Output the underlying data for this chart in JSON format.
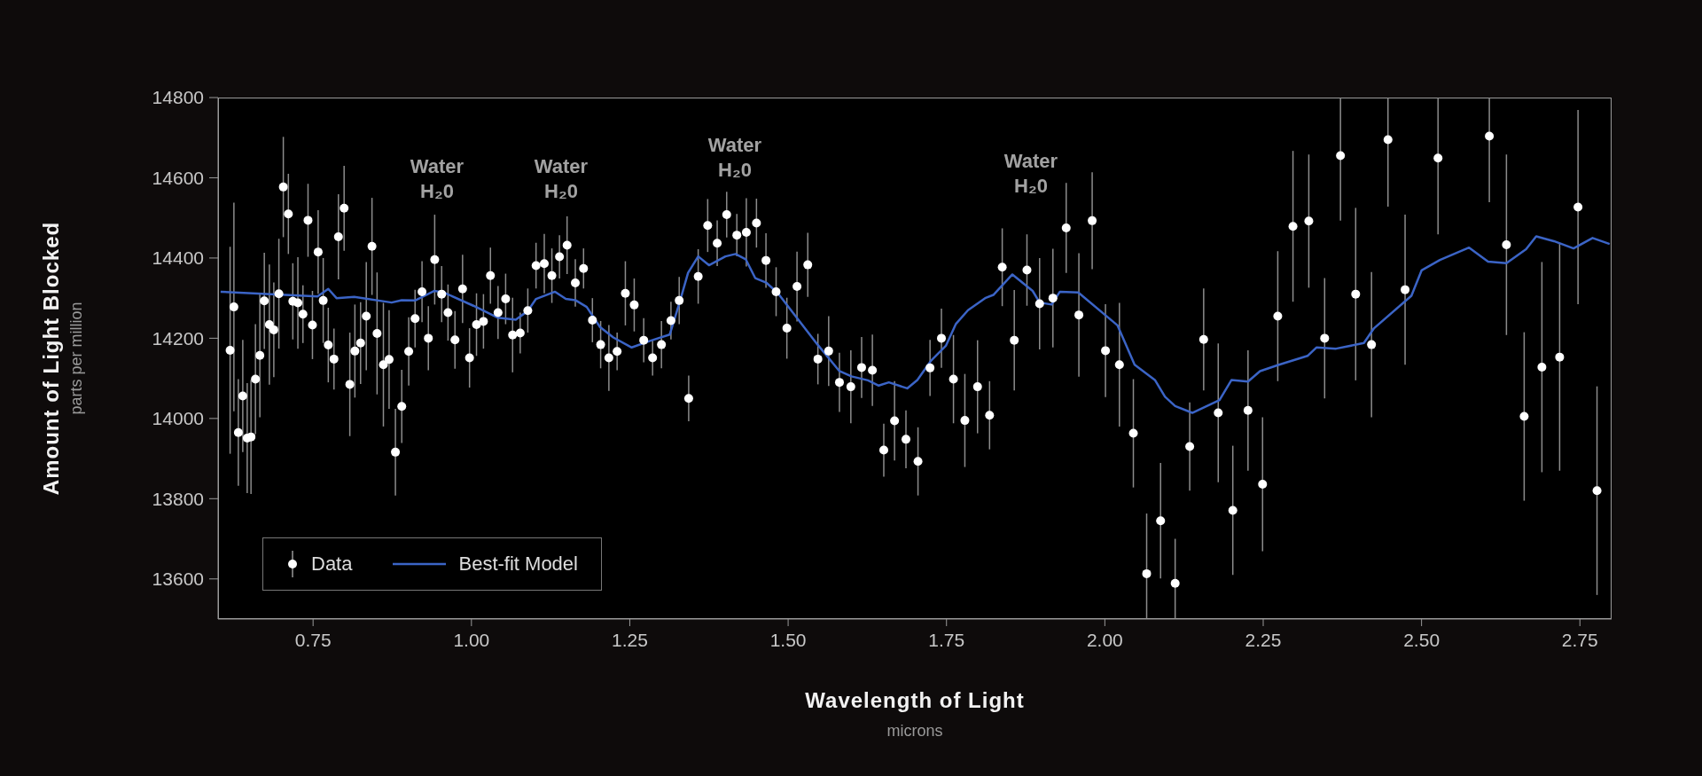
{
  "chart_data": {
    "type": "scatter",
    "xlabel": "Wavelength of Light\nmicrons",
    "ylabel": "Amount of Light Blocked\nparts per million",
    "xlim": [
      0.6,
      2.8
    ],
    "xticks": [
      0.75,
      {
        "value": 1,
        "label": "1.00"
      },
      1.25,
      {
        "value": 1.5,
        "label": "1.50"
      },
      1.75,
      {
        "value": 2,
        "label": "2.00"
      },
      2.25,
      {
        "value": 2.5,
        "label": "2.50"
      },
      2.75
    ],
    "ylim": [
      13500,
      14800
    ],
    "yticks": [
      13600,
      13800,
      14000,
      14200,
      14400,
      14600,
      14800
    ],
    "legend": "bottom left",
    "annotations": [
      "Water\nH₂0",
      "Water\nH₂0",
      "Water\nH₂0",
      "Water\nH₂0"
    ],
    "series": [
      {
        "name": "Data",
        "color": "#ffffff",
        "marker": "circle",
        "x": [
          0.619,
          0.625,
          0.632,
          0.639,
          0.646,
          0.652,
          0.659,
          0.666,
          0.673,
          0.681,
          0.688,
          0.696,
          0.703,
          0.711,
          0.718,
          0.726,
          0.734,
          0.742,
          0.749,
          0.758,
          0.766,
          0.774,
          0.783,
          0.79,
          0.799,
          0.808,
          0.816,
          0.825,
          0.834,
          0.843,
          0.851,
          0.861,
          0.87,
          0.88,
          0.89,
          0.901,
          0.911,
          0.922,
          0.932,
          0.942,
          0.953,
          0.963,
          0.974,
          0.986,
          0.997,
          1.008,
          1.019,
          1.03,
          1.042,
          1.054,
          1.065,
          1.077,
          1.089,
          1.102,
          1.115,
          1.127,
          1.139,
          1.151,
          1.164,
          1.177,
          1.191,
          1.204,
          1.217,
          1.23,
          1.243,
          1.257,
          1.272,
          1.286,
          1.3,
          1.315,
          1.328,
          1.343,
          1.358,
          1.373,
          1.388,
          1.403,
          1.419,
          1.434,
          1.45,
          1.465,
          1.481,
          1.498,
          1.514,
          1.531,
          1.547,
          1.564,
          1.581,
          1.599,
          1.616,
          1.633,
          1.651,
          1.668,
          1.686,
          1.705,
          1.724,
          1.742,
          1.761,
          1.779,
          1.799,
          1.818,
          1.838,
          1.857,
          1.877,
          1.897,
          1.918,
          1.939,
          1.959,
          1.98,
          2.001,
          2.023,
          2.045,
          2.066,
          2.088,
          2.111,
          2.134,
          2.156,
          2.179,
          2.202,
          2.226,
          2.249,
          2.273,
          2.297,
          2.322,
          2.347,
          2.372,
          2.396,
          2.421,
          2.447,
          2.474,
          2.526,
          2.607,
          2.634,
          2.662,
          2.69,
          2.718,
          2.747,
          2.777
        ],
        "values": [
          14170,
          14278,
          13965,
          14056,
          13951,
          13954,
          14098,
          14157,
          14293,
          14234,
          14221,
          14311,
          14577,
          14510,
          14292,
          14288,
          14260,
          14494,
          14233,
          14415,
          14294,
          14183,
          14148,
          14453,
          14524,
          14085,
          14168,
          14188,
          14255,
          14429,
          14212,
          14134,
          14147,
          13916,
          14030,
          14167,
          14249,
          14316,
          14200,
          14396,
          14310,
          14264,
          14196,
          14323,
          14151,
          14234,
          14242,
          14356,
          14264,
          14298,
          14208,
          14213,
          14269,
          14381,
          14386,
          14356,
          14403,
          14432,
          14338,
          14374,
          14245,
          14184,
          14151,
          14167,
          14312,
          14283,
          14195,
          14151,
          14184,
          14244,
          14294,
          14050,
          14354,
          14481,
          14437,
          14508,
          14457,
          14464,
          14487,
          14394,
          14316,
          14225,
          14329,
          14383,
          14148,
          14168,
          14090,
          14079,
          14127,
          14120,
          13921,
          13994,
          13948,
          13893,
          14126,
          14200,
          14098,
          13995,
          14079,
          14008,
          14377,
          14195,
          14370,
          14286,
          14300,
          14475,
          14258,
          14493,
          14169,
          14134,
          13963,
          13613,
          13745,
          13589,
          13930,
          14197,
          14014,
          13771,
          14020,
          13836,
          14255,
          14479,
          14492,
          14200,
          14655,
          14310,
          14184,
          14695,
          14321,
          14649,
          14704,
          14433,
          14005,
          14128,
          14153,
          14527,
          13820
        ],
        "errors": [
          258,
          260,
          133,
          140,
          137,
          142,
          137,
          154,
          120,
          150,
          118,
          137,
          125,
          100,
          95,
          114,
          72,
          91,
          85,
          104,
          106,
          93,
          76,
          106,
          106,
          129,
          116,
          102,
          135,
          121,
          152,
          154,
          123,
          108,
          91,
          85,
          72,
          76,
          80,
          112,
          70,
          70,
          72,
          85,
          74,
          78,
          68,
          70,
          66,
          63,
          93,
          51,
          55,
          57,
          74,
          68,
          54,
          72,
          59,
          50,
          55,
          59,
          82,
          47,
          80,
          66,
          55,
          44,
          59,
          47,
          59,
          57,
          68,
          66,
          57,
          57,
          53,
          85,
          61,
          68,
          61,
          76,
          87,
          80,
          63,
          87,
          74,
          91,
          76,
          89,
          66,
          99,
          72,
          85,
          70,
          74,
          110,
          116,
          116,
          85,
          97,
          125,
          89,
          114,
          123,
          112,
          154,
          121,
          116,
          154,
          135,
          [
            13500,
            13763
          ],
          144,
          [
            13500,
            13700
          ],
          110,
          127,
          173,
          161,
          150,
          167,
          162,
          188,
          166,
          150,
          [
            14493,
            14800
          ],
          215,
          181,
          [
            14528,
            14800
          ],
          187,
          [
            14459,
            14800
          ],
          [
            14539,
            14800
          ],
          225,
          210,
          262,
          283,
          242,
          260
        ]
      },
      {
        "name": "Best-fit Model",
        "type": "line",
        "color": "#3b64c6",
        "marker": "none",
        "x": [
          0.604,
          0.757,
          0.774,
          0.787,
          0.815,
          0.874,
          0.89,
          0.911,
          0.941,
          0.955,
          1.003,
          1.042,
          1.07,
          1.089,
          1.102,
          1.132,
          1.149,
          1.164,
          1.182,
          1.203,
          1.224,
          1.253,
          1.283,
          1.313,
          1.329,
          1.342,
          1.358,
          1.375,
          1.401,
          1.417,
          1.433,
          1.448,
          1.466,
          1.484,
          1.546,
          1.581,
          1.6,
          1.626,
          1.643,
          1.659,
          1.688,
          1.704,
          1.725,
          1.749,
          1.765,
          1.784,
          1.811,
          1.824,
          1.854,
          1.886,
          1.897,
          1.916,
          1.929,
          1.958,
          2.02,
          2.047,
          2.079,
          2.095,
          2.111,
          2.138,
          2.181,
          2.2,
          2.226,
          2.245,
          2.275,
          2.32,
          2.334,
          2.365,
          2.409,
          2.425,
          2.484,
          2.5,
          2.529,
          2.575,
          2.605,
          2.634,
          2.665,
          2.681,
          2.709,
          2.74,
          2.77,
          2.797
        ],
        "values": [
          14316,
          14304,
          14323,
          14300,
          14303,
          14289,
          14295,
          14294,
          14318,
          14315,
          14281,
          14251,
          14246,
          14268,
          14298,
          14316,
          14298,
          14295,
          14278,
          14228,
          14202,
          14177,
          14194,
          14209,
          14291,
          14363,
          14404,
          14382,
          14404,
          14410,
          14397,
          14350,
          14338,
          14312,
          14185,
          14118,
          14105,
          14095,
          14082,
          14090,
          14075,
          14096,
          14143,
          14181,
          14236,
          14270,
          14300,
          14308,
          14359,
          14318,
          14289,
          14284,
          14316,
          14314,
          14232,
          14134,
          14096,
          14054,
          14031,
          14014,
          14046,
          14096,
          14092,
          14118,
          14134,
          14156,
          14177,
          14174,
          14188,
          14225,
          14306,
          14369,
          14395,
          14426,
          14391,
          14387,
          14422,
          14454,
          14442,
          14424,
          14450,
          14435
        ]
      }
    ]
  }
}
